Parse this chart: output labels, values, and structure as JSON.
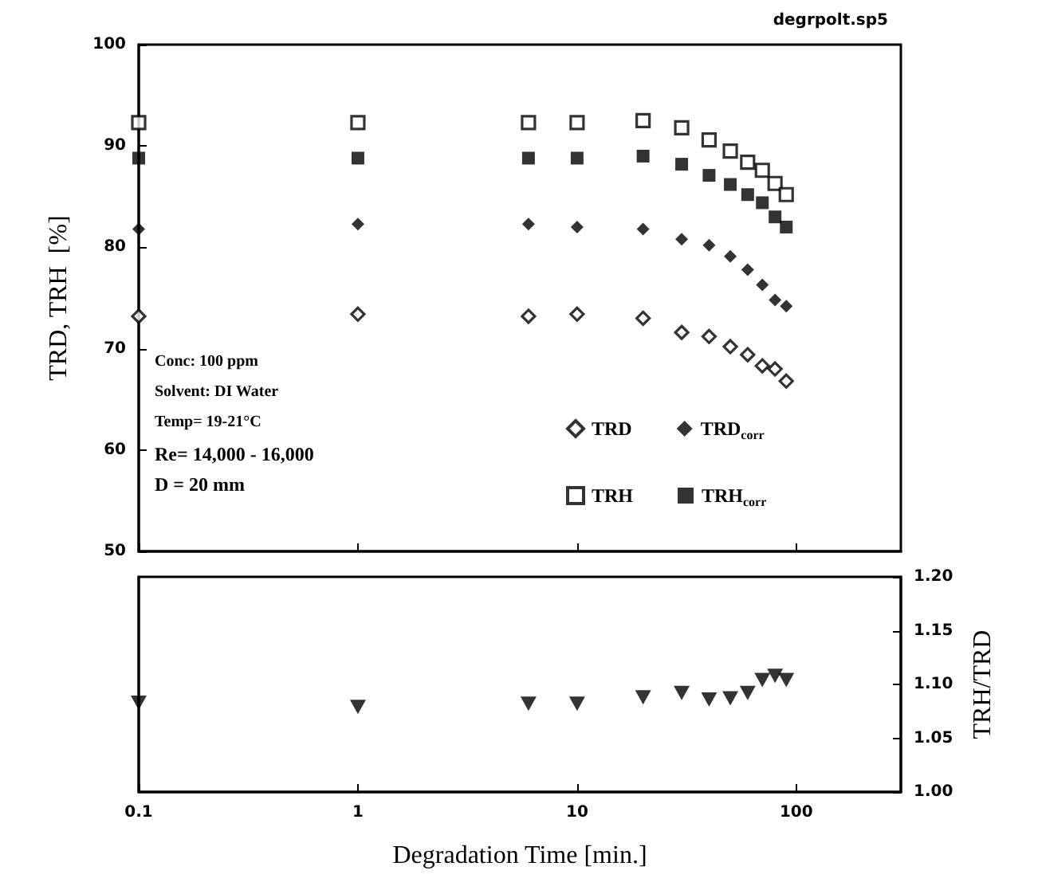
{
  "chart_data": [
    {
      "type": "scatter",
      "ylabel": "TRD, TRH  [%]",
      "log": "x",
      "xlim": [
        0.1,
        300
      ],
      "xticks": [
        0.1,
        1,
        10,
        100
      ],
      "ylim": [
        50,
        100
      ],
      "yticks": [
        50,
        60,
        70,
        80,
        90,
        100
      ],
      "tick_labels": "y",
      "legend": "bottom right",
      "grid": false,
      "annotations": [
        "degrpolt.sp5",
        "Conc: 100 ppm",
        "Solvent: DI Water",
        "Temp= 19-21°C",
        "Re= 14,000 - 16,000",
        "D = 20 mm"
      ],
      "x": [
        0.1,
        1,
        6,
        10,
        20,
        30,
        40,
        50,
        60,
        70,
        80,
        90
      ],
      "series": [
        {
          "name": "TRD",
          "color": "#000000",
          "marker": "diamond-open",
          "values": [
            73.2,
            73.4,
            73.2,
            73.4,
            73.0,
            71.6,
            71.2,
            70.2,
            69.4,
            68.3,
            68.0,
            66.8
          ]
        },
        {
          "name": "TRD$_{corr}$",
          "color": "#000000",
          "marker": "diamond",
          "values": [
            81.8,
            82.3,
            82.3,
            82.0,
            81.8,
            80.8,
            80.2,
            79.1,
            77.8,
            76.3,
            74.8,
            74.2
          ]
        },
        {
          "name": "TRH",
          "color": "#000000",
          "marker": "square-open",
          "values": [
            92.3,
            92.3,
            92.3,
            92.3,
            92.5,
            91.8,
            90.6,
            89.5,
            88.4,
            87.6,
            86.3,
            85.2
          ]
        },
        {
          "name": "TRH$_{corr}$",
          "color": "#000000",
          "marker": "square",
          "values": [
            88.8,
            88.8,
            88.8,
            88.8,
            89.0,
            88.2,
            87.1,
            86.2,
            85.2,
            84.4,
            83.0,
            82.0
          ]
        }
      ]
    },
    {
      "type": "scatter",
      "xlabel": "Degradation Time [min.]",
      "y2label": "TRH/TRD",
      "log": "x",
      "xlim": [
        0.1,
        300
      ],
      "xticks": [
        0.1,
        1,
        10,
        100
      ],
      "y2lim": [
        1.0,
        1.2
      ],
      "y2ticks": [
        {
          "value": 1.0,
          "label": "1.00"
        },
        {
          "value": 1.05,
          "label": "1.05"
        },
        {
          "value": 1.1,
          "label": "1.10"
        },
        {
          "value": 1.15,
          "label": "1.15"
        },
        {
          "value": 1.2,
          "label": "1.20"
        }
      ],
      "grid": false,
      "legend": false,
      "x": [
        0.1,
        1,
        6,
        10,
        20,
        30,
        40,
        50,
        60,
        70,
        80,
        90
      ],
      "series": [
        {
          "color": "#000000",
          "marker": "triangle-down",
          "axis": "y2",
          "values": [
            1.083,
            1.079,
            1.082,
            1.082,
            1.088,
            1.092,
            1.086,
            1.087,
            1.092,
            1.104,
            1.108,
            1.104
          ]
        }
      ]
    }
  ]
}
